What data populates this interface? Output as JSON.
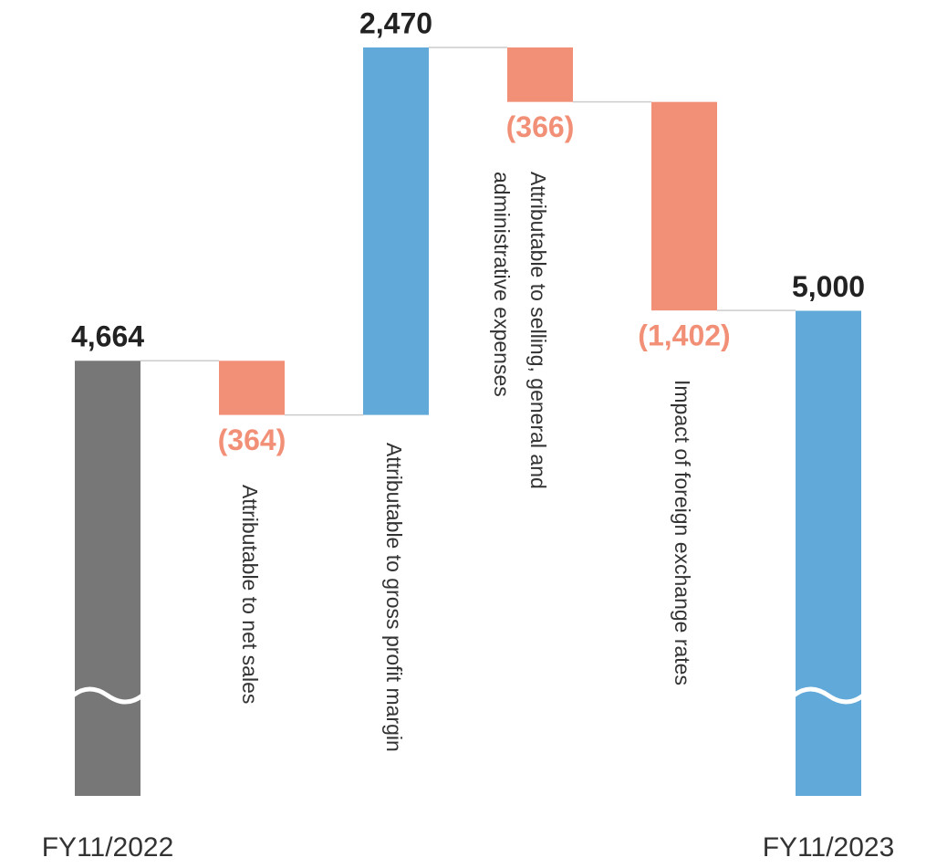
{
  "chart_data": {
    "type": "waterfall",
    "categories": [
      "FY11/2022",
      "Attributable to net sales",
      "Attributable to gross profit margin",
      "Attributable to selling, general and administrative expenses",
      "Impact of foreign exchange rates",
      "FY11/2023"
    ],
    "values": [
      4664,
      -364,
      2470,
      -366,
      -1402,
      5000
    ],
    "value_labels": [
      "4,664",
      "(364)",
      "2,470",
      "(366)",
      "(1,402)",
      "5,000"
    ],
    "colors": [
      "#777777",
      "#f29077",
      "#60a9d9",
      "#f29077",
      "#f29077",
      "#60a9d9"
    ]
  }
}
